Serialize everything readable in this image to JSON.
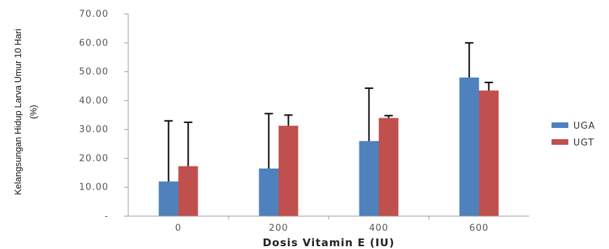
{
  "chart_data": {
    "type": "bar",
    "xlabel": "Dosis Vitamin E (IU)",
    "ylabel_lines": [
      "Kelangsungan Hidup Larva Umur 10 Hari",
      "(%)"
    ],
    "categories": [
      "0",
      "200",
      "400",
      "600"
    ],
    "ylim": [
      0,
      70
    ],
    "yticks": [
      "-",
      "10.00",
      "20.00",
      "30.00",
      "40.00",
      "50.00",
      "60.00",
      "70.00"
    ],
    "grid": false,
    "legend_position": "right",
    "error_bars": "positive",
    "series": [
      {
        "name": "UGA",
        "color": "#4f81bd",
        "values": [
          12,
          16.5,
          26,
          48
        ],
        "errors": [
          21,
          19,
          18.3,
          12
        ]
      },
      {
        "name": "UGT",
        "color": "#c0504d",
        "values": [
          17.3,
          31.3,
          34,
          43.5
        ],
        "errors": [
          15.2,
          3.7,
          0.8,
          2.8
        ]
      }
    ]
  }
}
